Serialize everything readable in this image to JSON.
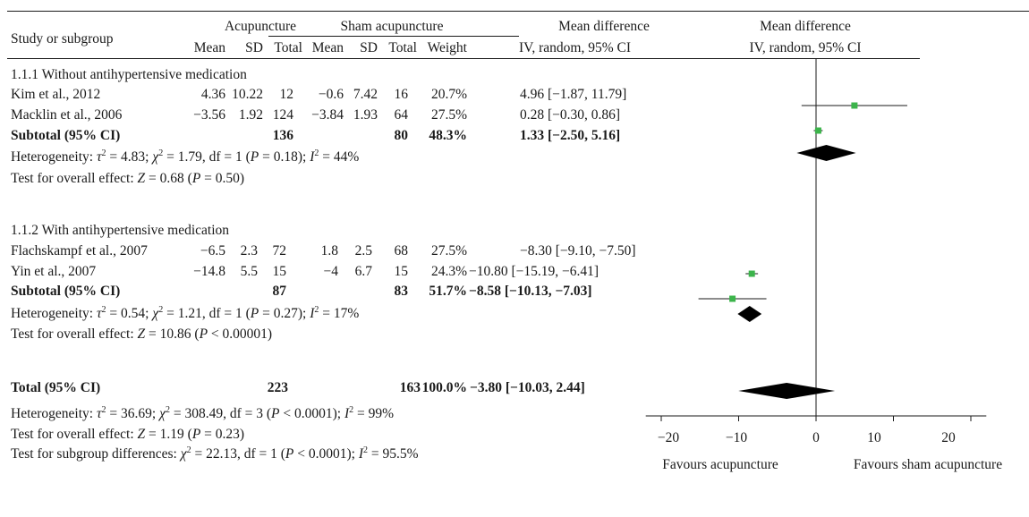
{
  "header": {
    "study_col": "Study or subgroup",
    "group1": "Acupuncture",
    "group2": "Sham acupuncture",
    "md_col": "Mean difference",
    "plot_col": "Mean difference",
    "mean": "Mean",
    "sd": "SD",
    "total": "Total",
    "weight": "Weight",
    "method": "IV, random, 95% CI",
    "plot_method": "IV, random, 95% CI"
  },
  "subgroups": [
    {
      "title": "1.1.1 Without antihypertensive medication",
      "studies": [
        {
          "name": "Kim et al., 2012",
          "m1": "4.36",
          "sd1": "10.22",
          "n1": "12",
          "m2": "−0.6",
          "sd2": "7.42",
          "n2": "16",
          "weight": "20.7%",
          "ci": "4.96 [−1.87, 11.79]"
        },
        {
          "name": "Macklin et al., 2006",
          "m1": "−3.56",
          "sd1": "1.92",
          "n1": "124",
          "m2": "−3.84",
          "sd2": "1.93",
          "n2": "64",
          "weight": "27.5%",
          "ci": "0.28 [−0.30, 0.86]"
        }
      ],
      "subtotal": {
        "label": "Subtotal (95% CI)",
        "n1": "136",
        "n2": "80",
        "weight": "48.3%",
        "ci": "1.33 [−2.50, 5.16]"
      },
      "heterogeneity": {
        "prefix": "Heterogeneity: ",
        "tau2": "4.83",
        "chi2": "1.79",
        "df": "1",
        "p": "0.18",
        "i2": "44%"
      },
      "overall": {
        "prefix": "Test for overall effect: ",
        "z": "0.68",
        "p_op": "=",
        "p": "0.50"
      }
    },
    {
      "title": "1.1.2 With antihypertensive medication",
      "studies": [
        {
          "name": "Flachskampf et al., 2007",
          "m1": "−6.5",
          "sd1": "2.3",
          "n1": "72",
          "m2": "1.8",
          "sd2": "2.5",
          "n2": "68",
          "weight": "27.5%",
          "ci": "−8.30 [−9.10, −7.50]"
        },
        {
          "name": "Yin et al., 2007",
          "m1": "−14.8",
          "sd1": "5.5",
          "n1": "15",
          "m2": "−4",
          "sd2": "6.7",
          "n2": "15",
          "weight": "24.3%",
          "ci": "−10.80 [−15.19, −6.41]"
        }
      ],
      "subtotal": {
        "label": "Subtotal (95% CI)",
        "n1": "87",
        "n2": "83",
        "weight": "51.7%",
        "ci": "−8.58 [−10.13, −7.03]"
      },
      "heterogeneity": {
        "prefix": "Heterogeneity: ",
        "tau2": "0.54",
        "chi2": "1.21",
        "df": "1",
        "p": "0.27",
        "i2": "17%"
      },
      "overall": {
        "prefix": "Test for overall effect: ",
        "z": "10.86",
        "p_op": "<",
        "p": "0.00001"
      }
    }
  ],
  "total": {
    "label": "Total (95% CI)",
    "n1": "223",
    "n2": "163",
    "weight": "100.0%",
    "ci": "−3.80 [−10.03, 2.44]"
  },
  "total_heterogeneity": {
    "prefix": "Heterogeneity: ",
    "tau2": "36.69",
    "chi2": "308.49",
    "df": "3",
    "p": "0.0001",
    "i2": "99%"
  },
  "total_overall": {
    "prefix": "Test for overall effect: ",
    "z": "1.19",
    "p": "0.23"
  },
  "subgroup_diff": {
    "prefix": "Test for subgroup differences: ",
    "chi2": "22.13",
    "df": "1",
    "p": "0.0001",
    "i2": "95.5%"
  },
  "axis": {
    "ticks": [
      "−20",
      "−10",
      "0",
      "10",
      "20"
    ],
    "left_label": "Favours acupuncture",
    "right_label": "Favours sham acupuncture"
  },
  "colors": {
    "study_marker": "#3cb44b",
    "summary_diamond": "#000000",
    "text": "#1a1a1a"
  },
  "chart_data": {
    "type": "forest",
    "xlim": [
      -22,
      22
    ],
    "ticks": [
      -20,
      -10,
      0,
      10,
      20
    ],
    "studies": [
      {
        "label": "Kim et al., 2012",
        "md": 4.96,
        "lo": -1.87,
        "hi": 11.79,
        "weight": 20.7
      },
      {
        "label": "Macklin et al., 2006",
        "md": 0.28,
        "lo": -0.3,
        "hi": 0.86,
        "weight": 27.5
      },
      {
        "label": "Flachskampf et al., 2007",
        "md": -8.3,
        "lo": -9.1,
        "hi": -7.5,
        "weight": 27.5
      },
      {
        "label": "Yin et al., 2007",
        "md": -10.8,
        "lo": -15.19,
        "hi": -6.41,
        "weight": 24.3
      }
    ],
    "summaries": [
      {
        "label": "Subtotal (95% CI)",
        "md": 1.33,
        "lo": -2.5,
        "hi": 5.16
      },
      {
        "label": "Subtotal (95% CI)",
        "md": -8.58,
        "lo": -10.13,
        "hi": -7.03
      },
      {
        "label": "Total (95% CI)",
        "md": -3.8,
        "lo": -10.03,
        "hi": 2.44
      }
    ]
  }
}
